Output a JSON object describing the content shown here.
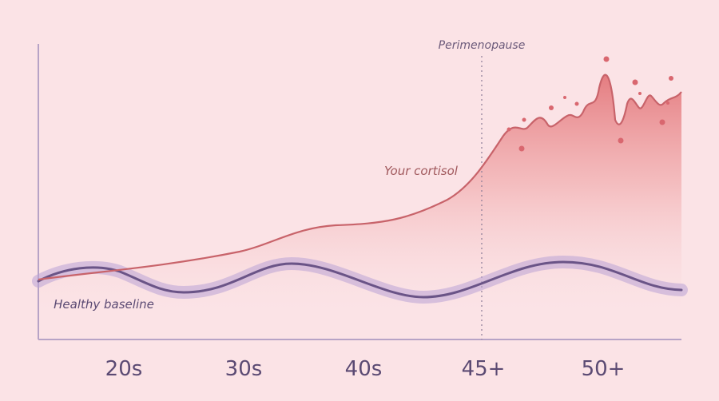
{
  "annotations": {
    "phase_marker": "Perimenopause",
    "cortisol_label": "Your cortisol",
    "baseline_label": "Healthy baseline"
  },
  "x_labels": [
    "20s",
    "30s",
    "40s",
    "45+",
    "50+"
  ]
}
